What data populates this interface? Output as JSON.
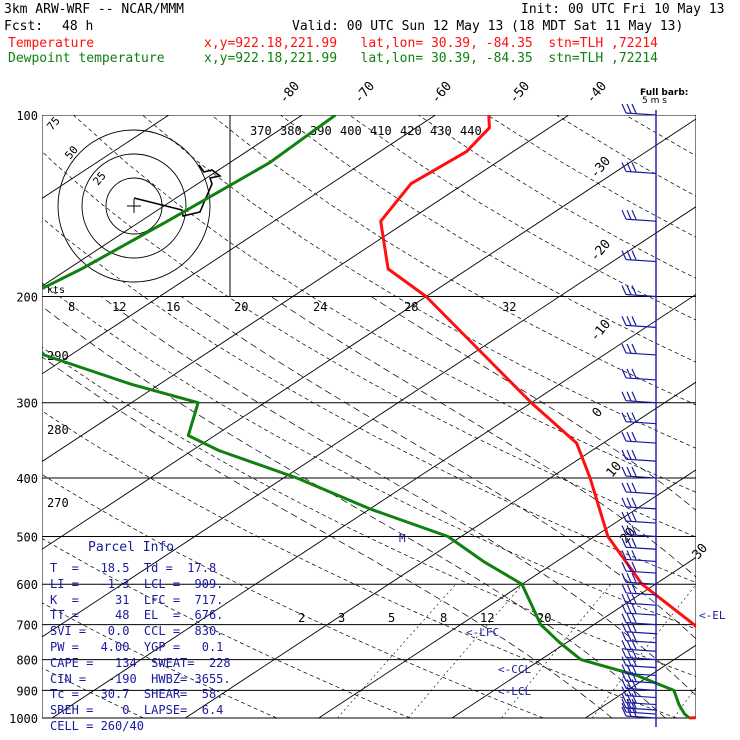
{
  "header": {
    "model": "3km ARW-WRF -- NCAR/MMM",
    "init": "Init: 00 UTC Fri 10 May 13",
    "fcst_label": "Fcst:",
    "fcst_hours": "48 h",
    "valid": "Valid: 00 UTC Sun 12 May 13 (18 MDT Sat 11 May 13)",
    "temp_label": "Temperature",
    "temp_loc": "x,y=922.18,221.99   lat,lon= 30.39, -84.35  stn=TLH ,72214",
    "dew_label": "Dewpoint temperature",
    "dew_loc": "x,y=922.18,221.99   lat,lon= 30.39, -84.35  stn=TLH ,72214"
  },
  "colors": {
    "temperature": "#ff1010",
    "dewpoint": "#108010",
    "text": "#000000",
    "info": "#1a1aa0",
    "barb": "#1a1aa0"
  },
  "chart_data": {
    "type": "line",
    "title": "",
    "ylabel": "",
    "y_scale": "log-pressure",
    "pressure_ticks": [
      100,
      200,
      300,
      400,
      500,
      600,
      700,
      800,
      900,
      1000
    ],
    "isotherm_top_labels": [
      "-80",
      "-70",
      "-60",
      "-50",
      "-40"
    ],
    "isotherm_right_labels": [
      "-30",
      "-20",
      "-10",
      "0",
      "10",
      "20",
      "30"
    ],
    "theta_labels": [
      "370",
      "380",
      "390",
      "400",
      "410",
      "420",
      "430",
      "440"
    ],
    "theta_side_labels": [
      "290",
      "280",
      "270"
    ],
    "hodograph_top_labels": [
      "8",
      "12",
      "16",
      "20",
      "24",
      "28",
      "32"
    ],
    "mixing_ratio_labels": [
      "2",
      "3",
      "5",
      "8",
      "12",
      "20"
    ],
    "hodo_unit": "kts",
    "hodo_ring_labels": [
      "75",
      "50",
      "25"
    ],
    "barb_label_1": "Full barb:",
    "barb_label_2": "5 m s",
    "level_labels": {
      "lfc": "<-LFC",
      "ccl": "<-CCL",
      "lcl": "<-LCL",
      "el": "<-EL",
      "cell_marker": "M"
    },
    "series": [
      {
        "name": "Temperature",
        "color": "#ff1010",
        "points": [
          [
            1000,
            17.8
          ],
          [
            985,
            23.5
          ],
          [
            950,
            22.5
          ],
          [
            900,
            20.5
          ],
          [
            850,
            17.0
          ],
          [
            800,
            14.0
          ],
          [
            700,
            7.5
          ],
          [
            600,
            -1.0
          ],
          [
            500,
            -9.0
          ],
          [
            400,
            -17.0
          ],
          [
            350,
            -22.0
          ],
          [
            300,
            -30.0
          ],
          [
            250,
            -39.0
          ],
          [
            200,
            -50.0
          ],
          [
            180,
            -56.0
          ],
          [
            150,
            -62.0
          ],
          [
            130,
            -64.0
          ],
          [
            115,
            -63.5
          ],
          [
            105,
            -64.5
          ],
          [
            100,
            -66.0
          ]
        ]
      },
      {
        "name": "Dewpoint temperature",
        "color": "#108010",
        "points": [
          [
            1000,
            17.8
          ],
          [
            985,
            17.0
          ],
          [
            950,
            15.5
          ],
          [
            900,
            13.5
          ],
          [
            850,
            9.0
          ],
          [
            800,
            3.0
          ],
          [
            750,
            -0.5
          ],
          [
            700,
            -4.0
          ],
          [
            600,
            -10.0
          ],
          [
            550,
            -15.5
          ],
          [
            500,
            -21.0
          ],
          [
            450,
            -30.0
          ],
          [
            400,
            -39.0
          ],
          [
            360,
            -48.0
          ],
          [
            340,
            -52.0
          ],
          [
            300,
            -55.0
          ],
          [
            280,
            -62.0
          ],
          [
            250,
            -72.0
          ],
          [
            210,
            -80.0
          ],
          [
            200,
            -80.0
          ],
          [
            180,
            -79.0
          ],
          [
            150,
            -78.0
          ],
          [
            120,
            -77.0
          ],
          [
            100,
            -77.5
          ]
        ]
      }
    ],
    "wind_barb_levels": [
      1000,
      985,
      970,
      950,
      925,
      900,
      875,
      850,
      825,
      800,
      775,
      750,
      725,
      700,
      675,
      650,
      625,
      600,
      575,
      550,
      525,
      500,
      475,
      450,
      425,
      400,
      375,
      350,
      325,
      300,
      275,
      250,
      225,
      200,
      175,
      150,
      125,
      100
    ]
  },
  "parcel_info": {
    "title": "Parcel Info",
    "rows": [
      "T  =   18.5  Td =  17.8",
      "LI =   -1.3  LCL =  909.",
      "K  =     31  LFC =  717.",
      "TT =     48  EL  =  676.",
      "SVI =   0.0  CCL =  830.",
      "PW =   4.00  YGP =   0.1",
      "CAPE =   134  SWEAT=  228",
      "CIN =   -190  HWBZ= 3655.",
      "Tc =   30.7  SHEAR=  58.",
      "SREH =    0  LAPSE=  6.4",
      "CELL = 260/40"
    ]
  }
}
